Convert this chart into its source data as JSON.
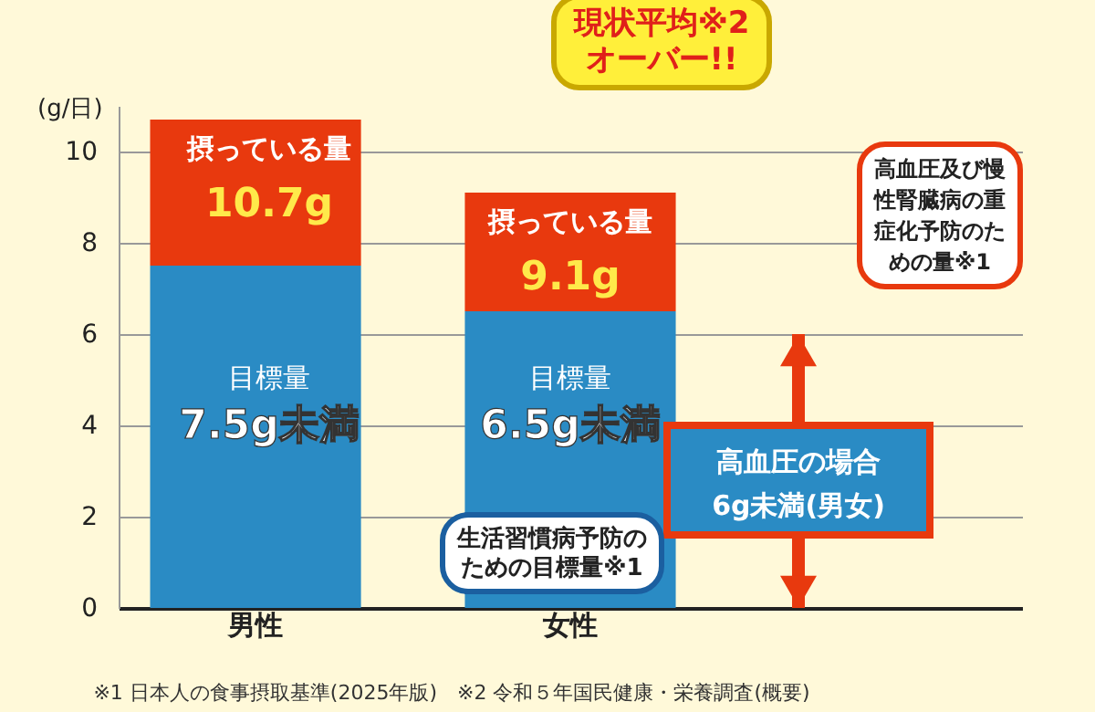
{
  "chart_data": {
    "type": "bar",
    "stacked": true,
    "ylabel": "(g/日)",
    "categories": [
      "男性",
      "女性",
      null
    ],
    "series": [
      {
        "color": "#2a8bc4",
        "values": [
          7.5,
          6.5,
          null
        ],
        "value_labels": [
          "7.5g未満",
          "6.5g未満",
          null
        ]
      },
      {
        "color": "#e8390e",
        "values": [
          3.2,
          2.6,
          null
        ]
      },
      {
        "color": "#e8390e",
        "values": [
          null,
          null,
          6
        ],
        "marker": "triangle",
        "value_labels": [
          null,
          null,
          "高血圧の場合6g未満(男女)"
        ]
      }
    ],
    "totals": [
      "10.7g",
      "9.1g",
      null
    ],
    "ylim": [
      0,
      11
    ],
    "yticks": [
      0,
      2,
      4,
      6,
      8,
      10
    ],
    "grid": "y",
    "legend": false,
    "annotations": [
      "現状平均※2オーバー!!",
      "摂っている量",
      "摂っている量",
      "目標量",
      "目標量",
      "生活習慣病予防のための目標量※1",
      "高血圧及び慢性腎臓病の重症化予防のための量※1",
      "※1 日本人の食事摂取基準(2025年版)　※2 令和５年国民健康・栄養調査(概要)"
    ]
  }
}
